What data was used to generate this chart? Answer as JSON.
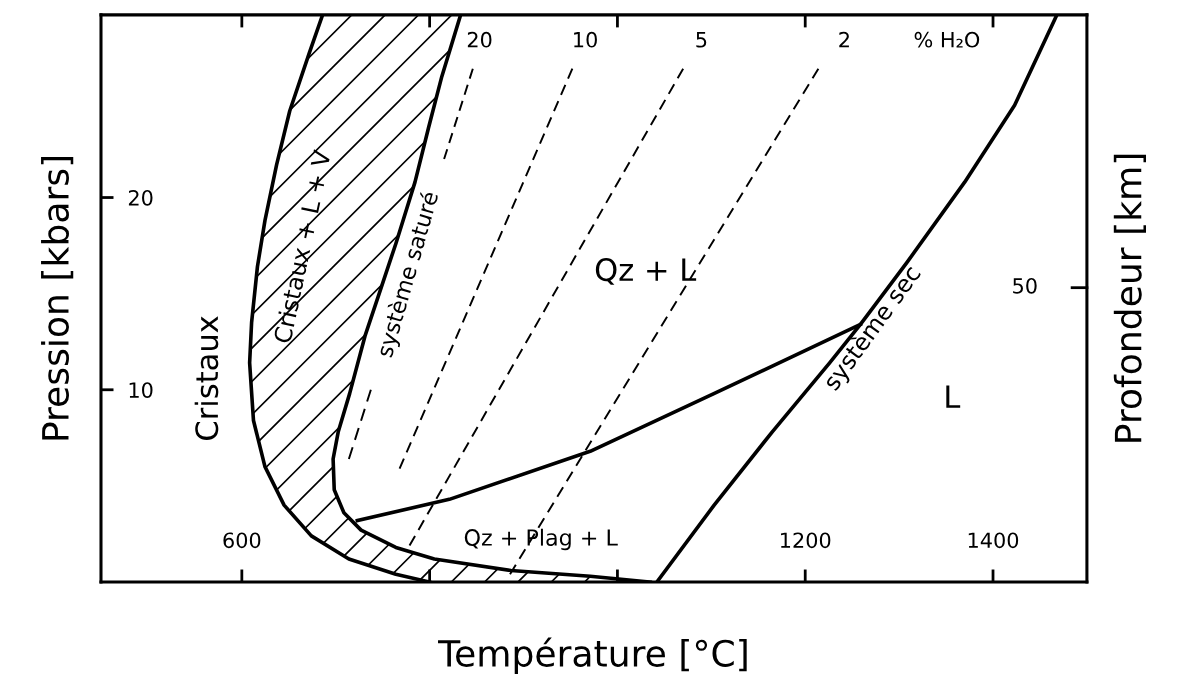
{
  "chart_data": {
    "type": "line",
    "xlabel": "Température [°C]",
    "ylabel": "Pression [kbars]",
    "y2label": "Profondeur [km]",
    "xlim": [
      450,
      1500
    ],
    "xticks": [
      600,
      {
        "value": 800,
        "label": null
      },
      {
        "value": 1000,
        "label": null
      },
      1200,
      1400
    ],
    "ylim": [
      0,
      29.5
    ],
    "yticks": [
      10,
      20
    ],
    "grid": false,
    "marker": "none",
    "series": [
      {
        "color": "#000000",
        "line_style": "solid",
        "x": [
          686,
          671.7,
          651,
          637,
          624.6,
          616.6,
          610.4,
          608.3,
          612.4,
          624.6,
          645,
          674,
          714,
          764,
          800
        ],
        "values": [
          29.5,
          27.5,
          24.5,
          21.7,
          18.8,
          16.4,
          13.5,
          11.4,
          8.4,
          6.0,
          4.0,
          2.4,
          1.2,
          0.4,
          0
        ]
      },
      {
        "color": "#000000",
        "line_style": "solid",
        "x": [
          833,
          813,
          798.7,
          784.4,
          764,
          747.6,
          731.2,
          714.8,
          702.6,
          697.2,
          698.4,
          708.7,
          727,
          764,
          805,
          886.6,
          971,
          1035
        ],
        "values": [
          29.5,
          26.3,
          23.6,
          20.8,
          17.6,
          15.2,
          12.8,
          9.8,
          7.8,
          6.4,
          4.8,
          3.6,
          2.7,
          1.8,
          1.2,
          0.6,
          0.3,
          0
        ]
      },
      {
        "color": "#000000",
        "line_style": "solid",
        "x": [
          1042,
          1103,
          1164.7,
          1226,
          1258.8,
          1308,
          1369.8,
          1423,
          1468
        ],
        "values": [
          0,
          4.0,
          7.8,
          11.4,
          13.4,
          16.6,
          20.8,
          24.8,
          29.5
        ]
      },
      {
        "color": "#000000",
        "line_style": "solid",
        "x": [
          723,
          821,
          971,
          1102.7,
          1258.8
        ],
        "values": [
          3.2,
          4.3,
          6.8,
          9.8,
          13.4
        ]
      },
      {
        "color": "#000000",
        "line_style": "dashed",
        "x": [
          846,
          815.4,
          776,
          737.4,
          714
        ],
        "values": [
          26.7,
          22,
          null,
          10,
          6.4
        ]
      },
      {
        "color": "#000000",
        "line_style": "dashed",
        "x": [
          952,
          768
        ],
        "values": [
          26.7,
          5.9
        ]
      },
      {
        "color": "#000000",
        "line_style": "dashed",
        "x": [
          1070,
          778.6
        ],
        "values": [
          26.7,
          1.9
        ]
      },
      {
        "color": "#000000",
        "line_style": "dashed",
        "x": [
          1214,
          885.6
        ],
        "values": [
          26.7,
          0.4
        ]
      }
    ],
    "annotations": [
      "20",
      "10",
      "5",
      "2",
      "% H₂O",
      "Cristaux",
      "Cristaux + L + V",
      "système saturé",
      "Qz + L",
      "système sec",
      "L",
      "Qz + Plag + L",
      "50"
    ]
  }
}
